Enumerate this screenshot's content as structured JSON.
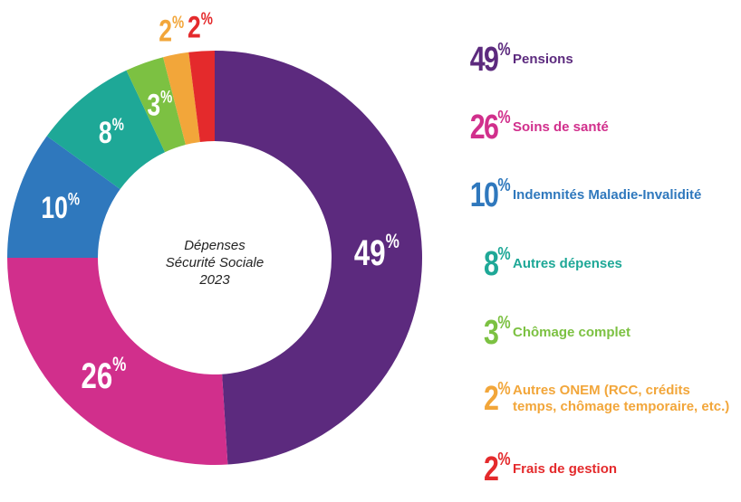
{
  "chart_data": {
    "type": "pie",
    "title": "Dépenses Sécurité Sociale 2023",
    "center_lines": [
      "Dépenses",
      "Sécurité Sociale",
      "2023"
    ],
    "categories": [
      "Pensions",
      "Soins de santé",
      "Indemnités Maladie-Invalidité",
      "Autres dépenses",
      "Chômage complet",
      "Autres ONEM (RCC, crédits temps, chômage temporaire, etc.)",
      "Frais de gestion"
    ],
    "values": [
      49,
      26,
      10,
      8,
      3,
      2,
      2
    ],
    "value_labels": [
      "49",
      "26",
      "10",
      "8",
      "3",
      "2",
      "2"
    ],
    "colors": [
      "#5c2a7e",
      "#d12f8c",
      "#2f78bd",
      "#1ea897",
      "#7cc142",
      "#f2a63a",
      "#e42a2c"
    ],
    "legend_placement": "right"
  },
  "legend": [
    {
      "pct": "49",
      "label": "Pensions"
    },
    {
      "pct": "26",
      "label": "Soins de santé"
    },
    {
      "pct": "10",
      "label": "Indemnités Maladie-Invalidité"
    },
    {
      "pct": "8",
      "label": "Autres dépenses"
    },
    {
      "pct": "3",
      "label": "Chômage complet"
    },
    {
      "pct": "2",
      "label": "Autres ONEM (RCC, crédits temps, chômage temporaire, etc.)"
    },
    {
      "pct": "2",
      "label": "Frais de gestion"
    }
  ]
}
